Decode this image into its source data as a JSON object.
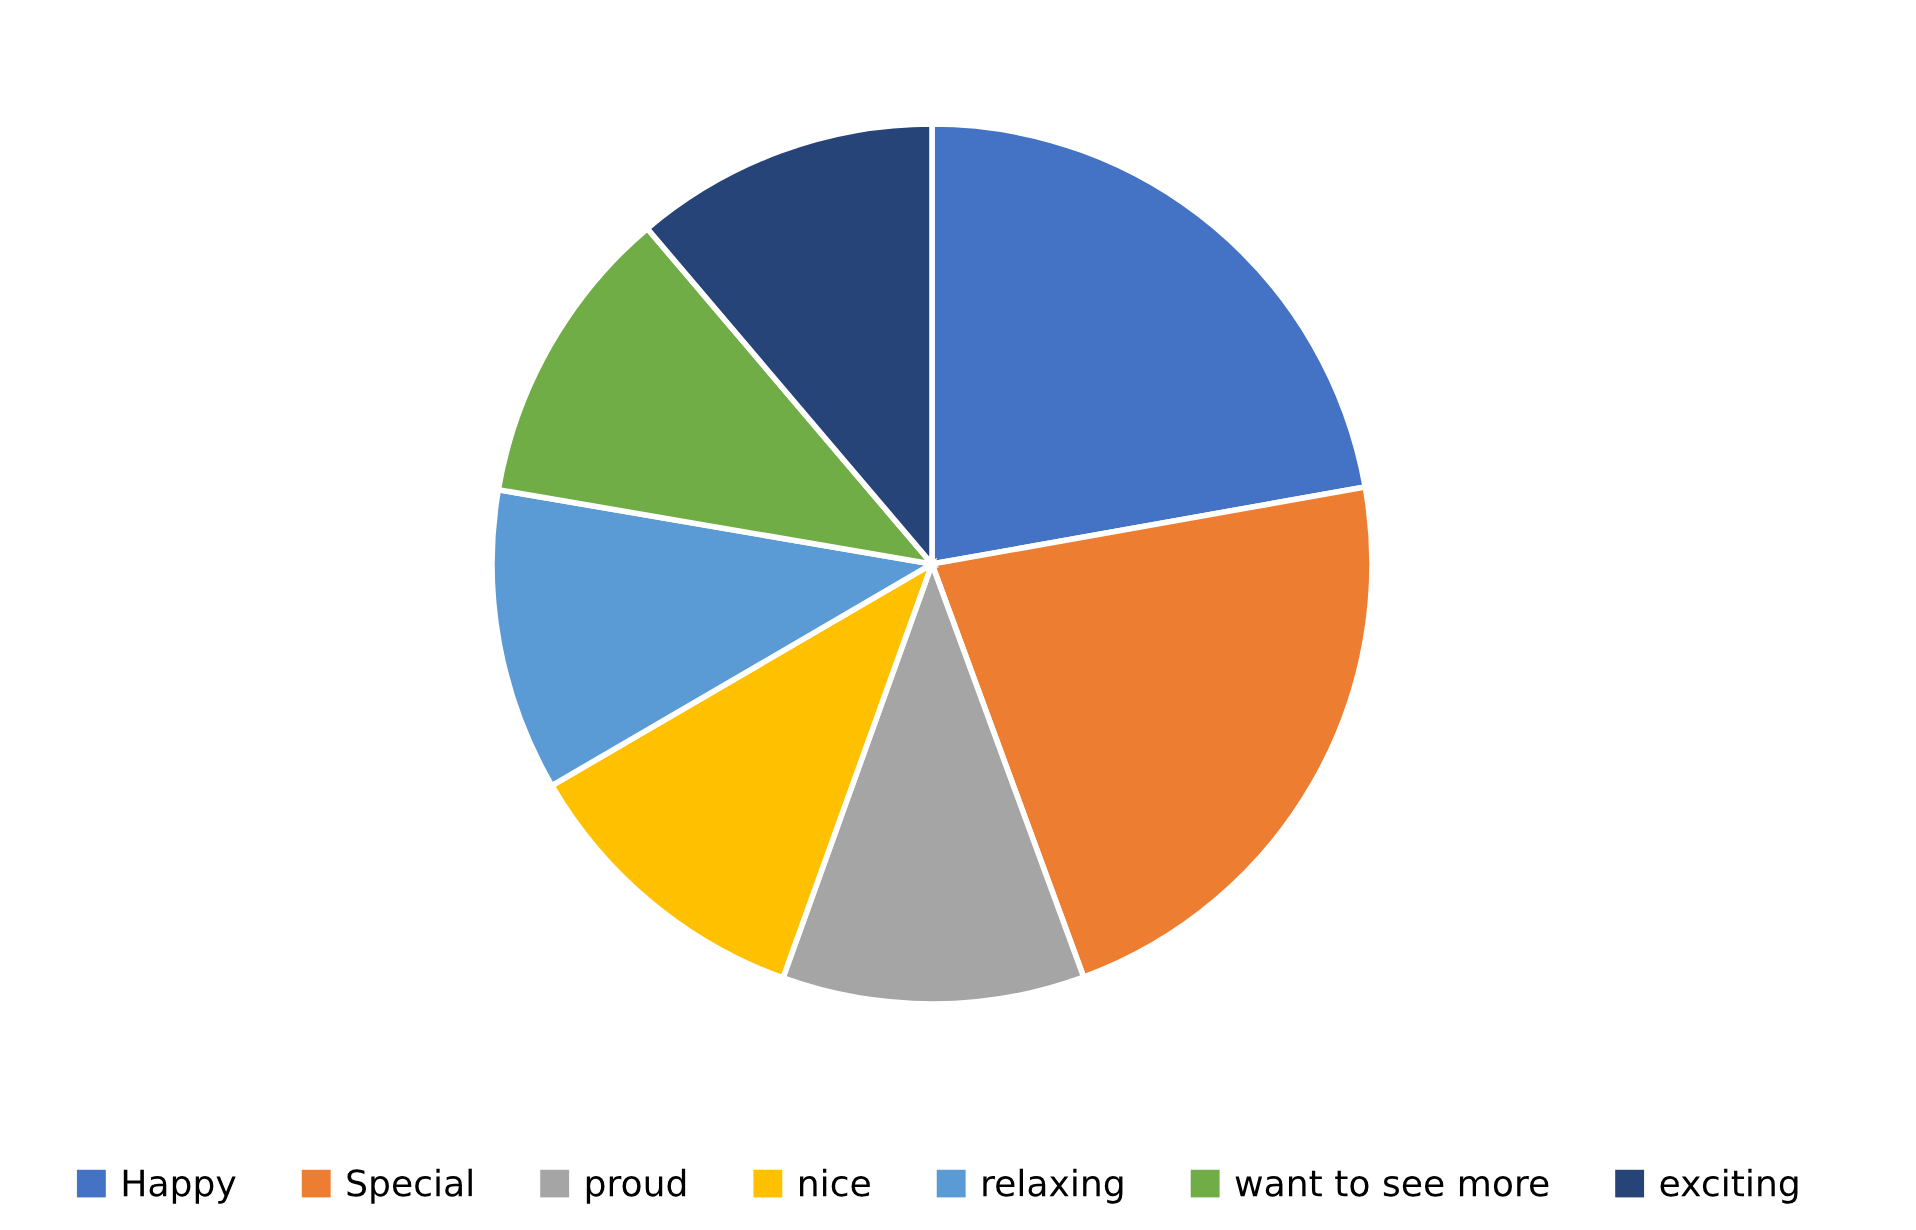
{
  "chart_data": {
    "type": "pie",
    "categories": [
      "Happy",
      "Special",
      "proud",
      "nice",
      "relaxing",
      "want to see more",
      "exciting"
    ],
    "values": [
      22.2,
      22.2,
      11.1,
      11.1,
      11.1,
      11.1,
      11.2
    ],
    "colors": [
      "#4472c4",
      "#ed7d31",
      "#a5a5a5",
      "#ffc000",
      "#5b9bd5",
      "#70ad47",
      "#264478"
    ],
    "legend": "bottom"
  }
}
